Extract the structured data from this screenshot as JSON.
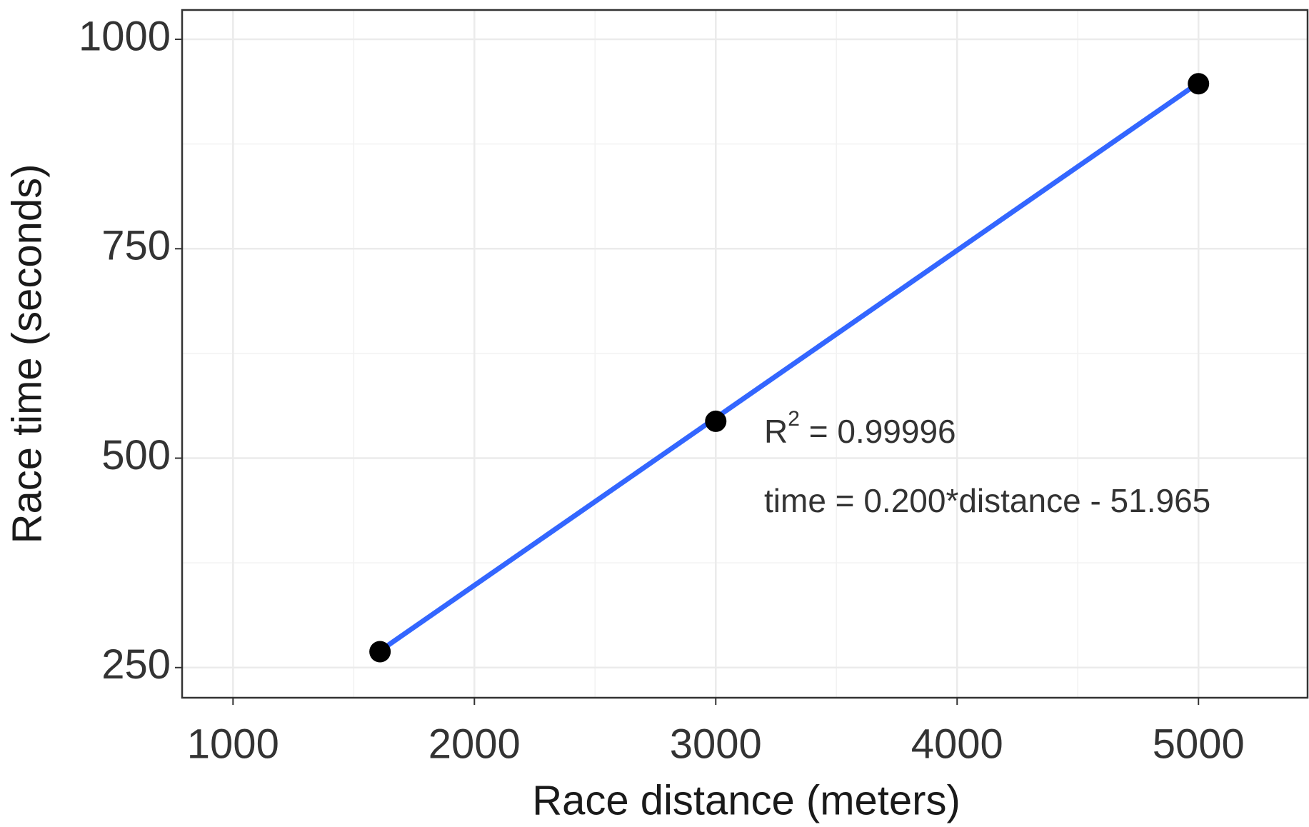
{
  "chart_data": {
    "type": "scatter",
    "xlabel": "Race distance (meters)",
    "ylabel": "Race time (seconds)",
    "x": [
      1609,
      3000,
      5000
    ],
    "values": [
      269,
      544,
      947
    ],
    "color": "#000000",
    "fit": {
      "x": [
        1609,
        5000
      ],
      "values": [
        270,
        948
      ],
      "color": "#3366ff"
    },
    "annotation": {
      "r2": [
        "R",
        "2",
        " = 0.99996"
      ],
      "equation": "time = 0.200*distance - 51.965"
    },
    "xlim": [
      789,
      5452
    ],
    "xticks": [
      1000,
      2000,
      3000,
      4000,
      5000
    ],
    "ylim": [
      214,
      1035
    ],
    "yticks": [
      250,
      500,
      750,
      1000
    ],
    "grid": true
  }
}
